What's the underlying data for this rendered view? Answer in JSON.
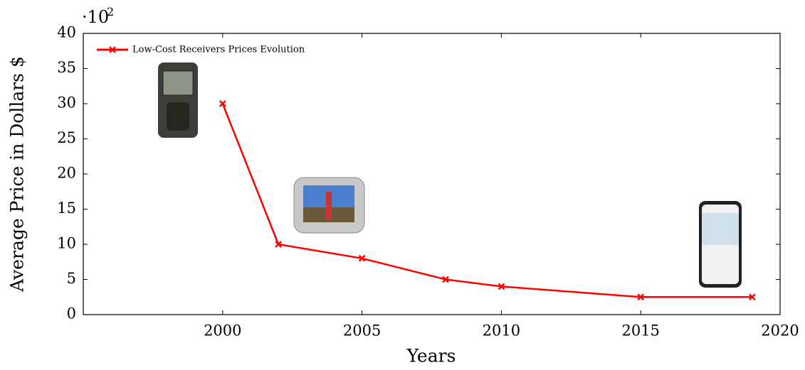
{
  "chart_data": {
    "type": "line",
    "y_multiplier": {
      "base": "·10",
      "exponent": "2"
    },
    "xlabel": "Years",
    "ylabel": "Average Price in Dollars $",
    "x": [
      2000,
      2002,
      2005,
      2008,
      2010,
      2015,
      2019
    ],
    "series": [
      {
        "name": "Low-Cost Receivers Prices Evolution",
        "color": "#ff0000",
        "values": [
          30,
          10,
          8,
          5,
          4,
          2.5,
          2.5
        ]
      }
    ],
    "xlim": [
      1995,
      2020
    ],
    "xticks": [
      2000,
      2005,
      2010,
      2015,
      2020
    ],
    "ylim": [
      0,
      40
    ],
    "yticks": [
      0,
      5,
      10,
      15,
      20,
      25,
      30,
      35,
      40
    ],
    "legend": "upper left"
  }
}
